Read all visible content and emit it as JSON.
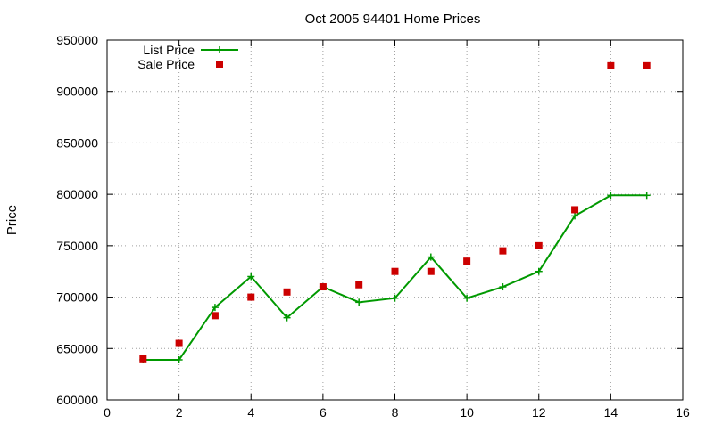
{
  "chart_data": {
    "type": "line",
    "title": "Oct 2005 94401 Home Prices",
    "xlabel": "",
    "ylabel": "Price",
    "xlim": [
      0,
      16
    ],
    "ylim": [
      600000,
      950000
    ],
    "x_ticks": [
      0,
      2,
      4,
      6,
      8,
      10,
      12,
      14,
      16
    ],
    "y_ticks": [
      600000,
      650000,
      700000,
      750000,
      800000,
      850000,
      900000,
      950000
    ],
    "grid": true,
    "legend_position": "top-left",
    "series": [
      {
        "name": "List Price",
        "style": "line-with-plus-markers",
        "color": "#009900",
        "x": [
          1,
          2,
          3,
          4,
          5,
          6,
          7,
          8,
          9,
          10,
          11,
          12,
          13,
          14,
          15
        ],
        "values": [
          639000,
          639000,
          690000,
          720000,
          680000,
          710000,
          695000,
          699000,
          739000,
          699000,
          710000,
          725000,
          779000,
          799000,
          799000
        ]
      },
      {
        "name": "Sale Price",
        "style": "square-points",
        "color": "#cc0000",
        "x": [
          1,
          2,
          3,
          4,
          5,
          6,
          7,
          8,
          9,
          10,
          11,
          12,
          13,
          14,
          15
        ],
        "values": [
          640000,
          655000,
          682000,
          700000,
          705000,
          710000,
          712000,
          725000,
          725000,
          735000,
          745000,
          750000,
          785000,
          925000,
          925000
        ]
      }
    ]
  }
}
